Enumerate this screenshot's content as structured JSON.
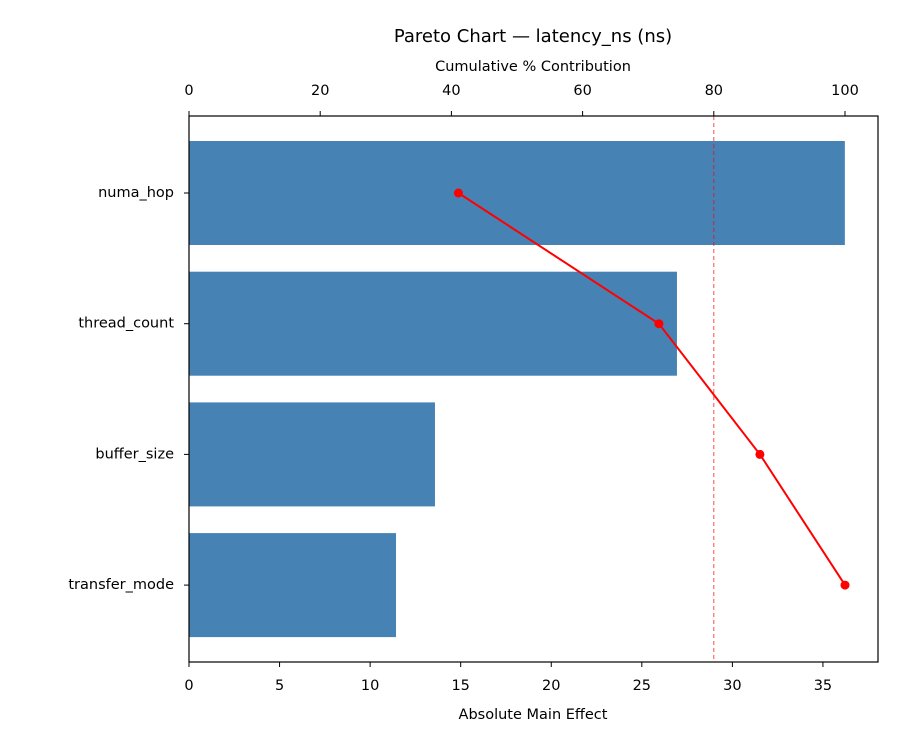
{
  "chart_data": {
    "type": "pareto",
    "title": "Pareto Chart — latency_ns (ns)",
    "xlabel": "Absolute Main Effect",
    "x2label": "Cumulative % Contribution",
    "categories": [
      "numa_hop",
      "thread_count",
      "buffer_size",
      "transfer_mode"
    ],
    "values": [
      36.21,
      26.94,
      13.58,
      11.43
    ],
    "color": "#4682b4",
    "cumulative": {
      "values": [
        41.07,
        71.63,
        87.03,
        100
      ],
      "color": "#ff0000",
      "axis": "x2"
    },
    "threshold": {
      "value": 80,
      "color": "#ff0000",
      "axis": "x2"
    },
    "xlim": [
      0,
      38.04
    ],
    "xticks": [
      0,
      5,
      10,
      15,
      20,
      25,
      30,
      35
    ],
    "x2lim": [
      0,
      105.03
    ],
    "x2ticks": [
      0,
      20,
      40,
      60,
      80,
      100
    ]
  }
}
